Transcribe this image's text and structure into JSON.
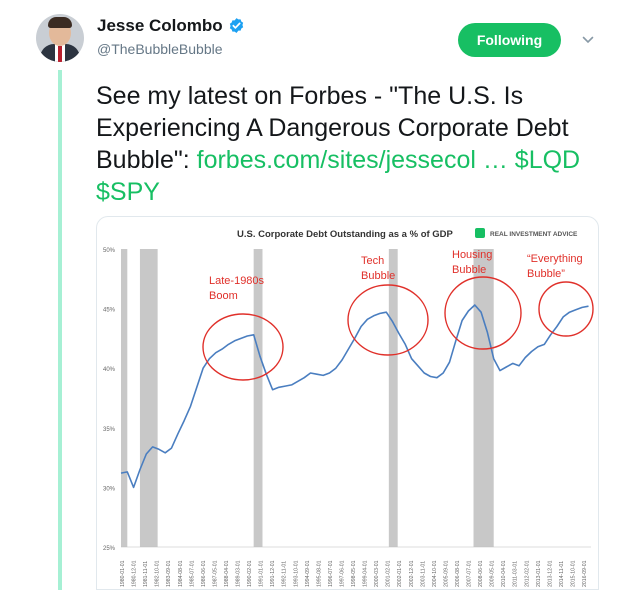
{
  "author": {
    "name": "Jesse Colombo",
    "handle": "@TheBubbleBubble",
    "verified": true
  },
  "follow_button": {
    "label": "Following"
  },
  "icons": {
    "verified": "verified-badge-icon",
    "caret": "chevron-down-icon"
  },
  "tweet": {
    "text": "See my latest on Forbes - \"The U.S. Is Experiencing A Dangerous Corporate Debt Bubble\": ",
    "link": "forbes.com/sites/jessecol …",
    "cashtags": " $LQD $SPY"
  },
  "colors": {
    "accent": "#17bf63",
    "verified": "#1da1f2",
    "thread": "#a6f0d4",
    "line": "#4a7ec0",
    "annotation": "#e0302a",
    "recession": "#c8c8c8"
  },
  "chart_data": {
    "type": "line",
    "title": "U.S. Corporate Debt Outstanding as a % of GDP",
    "brand": "REAL INVESTMENT ADVICE",
    "y_ticks": [
      "50%",
      "45%",
      "40%",
      "35%",
      "30%",
      "25%"
    ],
    "ylim": [
      25,
      50
    ],
    "x_ticks": [
      "1980-01-01",
      "1980-12-01",
      "1981-11-01",
      "1982-10-01",
      "1983-09-01",
      "1984-08-01",
      "1985-07-01",
      "1986-06-01",
      "1987-05-01",
      "1988-04-01",
      "1989-03-01",
      "1990-02-01",
      "1991-01-01",
      "1991-12-01",
      "1992-11-01",
      "1993-10-01",
      "1994-09-01",
      "1995-08-01",
      "1996-07-01",
      "1997-06-01",
      "1998-05-01",
      "1999-04-01",
      "2000-03-01",
      "2001-02-01",
      "2002-01-01",
      "2002-12-01",
      "2003-11-01",
      "2004-10-01",
      "2005-09-01",
      "2006-08-01",
      "2007-07-01",
      "2008-06-01",
      "2009-05-01",
      "2010-04-01",
      "2011-03-01",
      "2012-02-01",
      "2013-01-01",
      "2013-12-01",
      "2014-11-01",
      "2015-10-01",
      "2016-09-01"
    ],
    "recessions": [
      [
        1980.0,
        1980.5
      ],
      [
        1981.5,
        1982.9
      ],
      [
        1990.5,
        1991.2
      ],
      [
        2001.2,
        2001.9
      ],
      [
        2007.9,
        2009.5
      ]
    ],
    "series": [
      {
        "x": [
          1980.0,
          1980.5,
          1981.0,
          1981.5,
          1982.0,
          1982.5,
          1983.0,
          1983.5,
          1984.0,
          1984.5,
          1985.0,
          1985.5,
          1986.0,
          1986.5,
          1987.0,
          1987.5,
          1988.0,
          1988.5,
          1989.0,
          1989.5,
          1990.0,
          1990.5,
          1991.0,
          1991.5,
          1992.0,
          1992.5,
          1993.0,
          1993.5,
          1994.0,
          1994.5,
          1995.0,
          1995.5,
          1996.0,
          1996.5,
          1997.0,
          1997.5,
          1998.0,
          1998.5,
          1999.0,
          1999.5,
          2000.0,
          2000.5,
          2001.0,
          2001.5,
          2002.0,
          2002.5,
          2003.0,
          2003.5,
          2004.0,
          2004.5,
          2005.0,
          2005.5,
          2006.0,
          2006.5,
          2007.0,
          2007.5,
          2008.0,
          2008.5,
          2009.0,
          2009.5,
          2010.0,
          2010.5,
          2011.0,
          2011.5,
          2012.0,
          2012.5,
          2013.0,
          2013.5,
          2014.0,
          2014.5,
          2015.0,
          2015.5,
          2016.0,
          2016.5,
          2017.0
        ],
        "y": [
          31.2,
          31.3,
          30.0,
          31.5,
          32.8,
          33.4,
          33.2,
          32.9,
          33.3,
          34.5,
          35.6,
          36.8,
          38.4,
          40.0,
          40.8,
          41.3,
          41.6,
          42.0,
          42.3,
          42.5,
          42.7,
          42.8,
          41.0,
          39.5,
          38.2,
          38.4,
          38.5,
          38.6,
          38.9,
          39.2,
          39.6,
          39.5,
          39.4,
          39.6,
          40.0,
          40.7,
          41.6,
          42.5,
          43.5,
          44.1,
          44.4,
          44.6,
          44.7,
          43.9,
          42.9,
          42.0,
          40.8,
          40.2,
          39.6,
          39.3,
          39.2,
          39.6,
          40.5,
          42.3,
          44.0,
          44.8,
          45.3,
          44.7,
          43.0,
          40.8,
          39.8,
          40.1,
          40.4,
          40.2,
          40.9,
          41.4,
          41.8,
          42.0,
          42.8,
          43.5,
          44.3,
          44.7,
          44.9,
          45.1,
          45.2
        ]
      }
    ],
    "annotations": [
      {
        "text": "Late-1980s",
        "text2": "Boom"
      },
      {
        "text": "Tech",
        "text2": "Bubble"
      },
      {
        "text": "Housing",
        "text2": "Bubble"
      },
      {
        "text": "“Everything",
        "text2": "Bubble”"
      }
    ]
  }
}
